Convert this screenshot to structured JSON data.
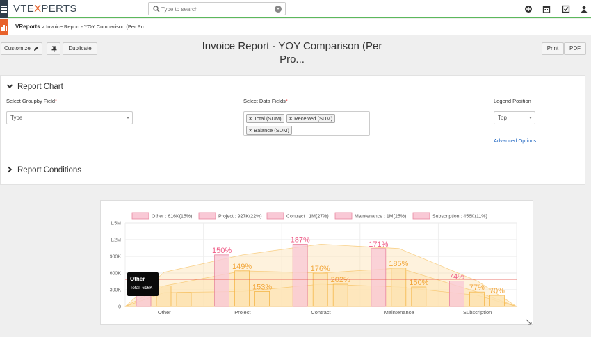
{
  "app": {
    "brand_left": "VTE",
    "brand_accent": "X",
    "brand_right": "PERTS",
    "search_placeholder": "Type to search",
    "icons": [
      "menu-icon",
      "plus-circle-icon",
      "calendar-icon",
      "tasks-icon",
      "user-icon"
    ]
  },
  "breadcrumb": {
    "module": "VReports",
    "separator": " > ",
    "page": "Invoice Report - YOY Comparison (Per Pro..."
  },
  "toolbar": {
    "customize_label": "Customize",
    "duplicate_label": "Duplicate",
    "print_label": "Print",
    "pdf_label": "PDF"
  },
  "report": {
    "title_line1": "Invoice Report - YOY Comparison (Per",
    "title_line2": "Pro..."
  },
  "report_chart": {
    "heading": "Report Chart",
    "groupby_label": "Select Groupby Field",
    "groupby_value": "Type",
    "fields_label": "Select Data Fields",
    "fields": [
      "Total (SUM)",
      "Received (SUM)",
      "Balance (SUM)"
    ],
    "legend_label": "Legend Position",
    "legend_value": "Top",
    "advanced_label": "Advanced Options",
    "required_mark": "*"
  },
  "report_conditions": {
    "heading": "Report Conditions"
  },
  "colors": {
    "accent_orange": "#e8622b",
    "success_line": "#5cb85c",
    "pink_fill": "#f9c9d6",
    "pink_stroke": "#e8869f",
    "orange_fill": "#fde3b3",
    "orange_stroke": "#f5b74a",
    "pct_pink": "#ef5b86",
    "pct_orange": "#f2a73b",
    "ref_line": "#e3483f",
    "link_blue": "#1f66c1"
  },
  "chart_data": {
    "type": "bar",
    "categories": [
      "Other",
      "Project",
      "Contract",
      "Maintenance",
      "Subscription"
    ],
    "legend": [
      "Other : 616K(15%)",
      "Project : 927K(22%)",
      "Contract : 1M(27%)",
      "Maintenance : 1M(25%)",
      "Subscription : 456K(11%)"
    ],
    "y_ticks": [
      "1.5M",
      "1.2M",
      "900K",
      "600K",
      "300K",
      "0"
    ],
    "ylim": [
      0,
      1500000
    ],
    "series": [
      {
        "name": "Total (SUM)",
        "values": [
          616000,
          927000,
          1120000,
          1040000,
          456000
        ]
      },
      {
        "name": "Received (SUM)",
        "values": [
          370000,
          640000,
          600000,
          690000,
          260000
        ]
      },
      {
        "name": "Balance (SUM)",
        "values": [
          250000,
          270000,
          400000,
          350000,
          200000
        ]
      }
    ],
    "percent_labels": [
      [
        "",
        "",
        ""
      ],
      [
        "150%",
        "149%",
        "153%"
      ],
      [
        "187%",
        "176%",
        "202%"
      ],
      [
        "171%",
        "185%",
        "150%"
      ],
      [
        "74%",
        "77%",
        "70%"
      ]
    ],
    "reference_line": 490000,
    "tooltip": {
      "title": "Other",
      "text": "Total: 616K"
    }
  }
}
